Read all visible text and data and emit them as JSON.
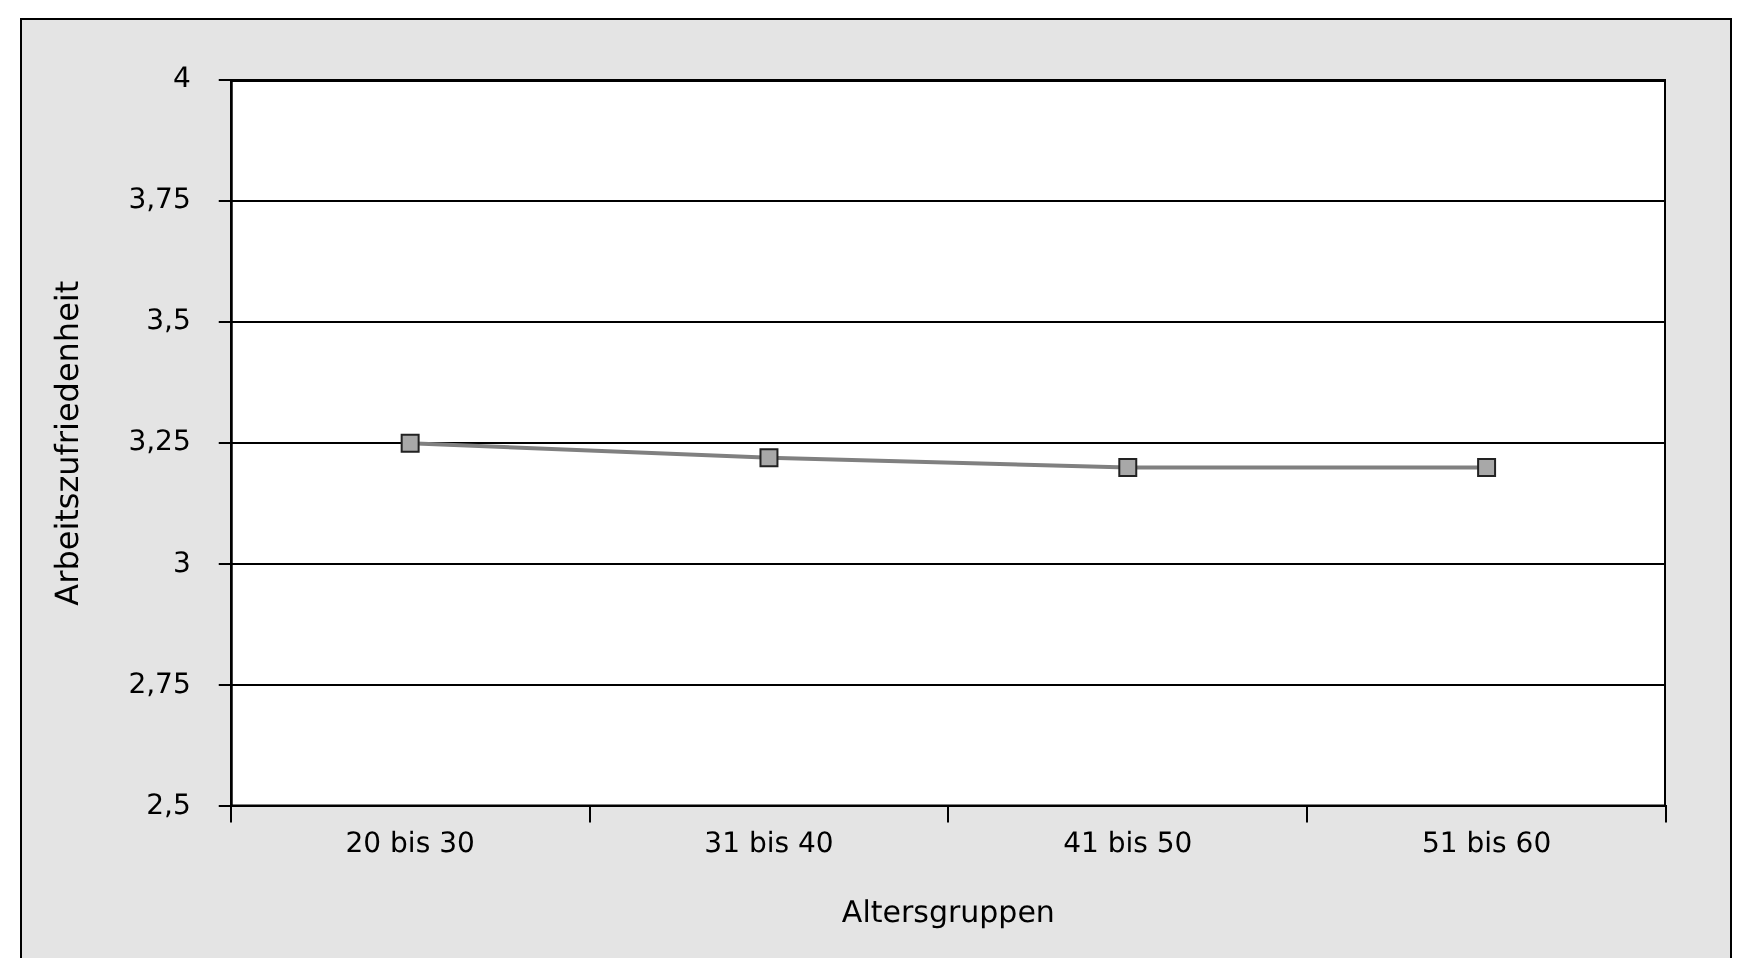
{
  "chart_data": {
    "type": "line",
    "xlabel": "Altersgruppen",
    "ylabel": "Arbeitszufriedenheit",
    "categories": [
      "20 bis 30",
      "31 bis 40",
      "41 bis 50",
      "51 bis 60"
    ],
    "series": [
      {
        "color": "#808080",
        "values": [
          3.25,
          3.22,
          3.2,
          3.2
        ]
      }
    ],
    "ylim": [
      2.5,
      4
    ],
    "yticks": [
      {
        "value": 2.5,
        "label": "2,5"
      },
      {
        "value": 2.75,
        "label": "2,75"
      },
      {
        "value": 3,
        "label": "3"
      },
      {
        "value": 3.25,
        "label": "3,25"
      },
      {
        "value": 3.5,
        "label": "3,5"
      },
      {
        "value": 3.75,
        "label": "3,75"
      },
      {
        "value": 4,
        "label": "4"
      }
    ],
    "grid": "y",
    "legend": false,
    "marker": "square",
    "line_style": "solid"
  }
}
